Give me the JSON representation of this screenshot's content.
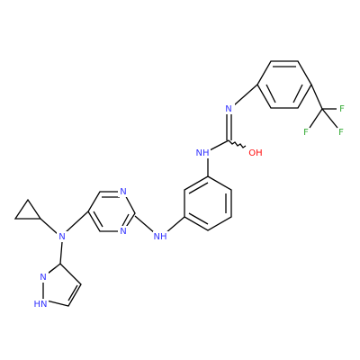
{
  "nodes": [
    {
      "label": "N"
    },
    {
      "label": "OH"
    },
    {
      "label": "NH"
    },
    {
      "label": "F"
    },
    {
      "label": "F"
    },
    {
      "label": "F"
    },
    {
      "label": "N"
    },
    {
      "label": "N"
    },
    {
      "label": "NH"
    },
    {
      "label": "N"
    },
    {
      "label": "N"
    },
    {
      "label": "HN"
    }
  ]
}
